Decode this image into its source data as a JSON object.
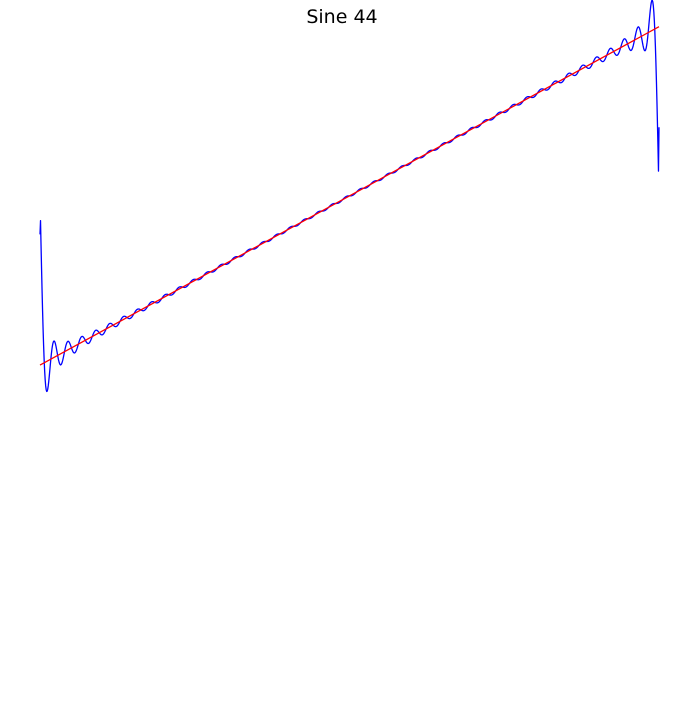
{
  "chart_data": {
    "type": "line",
    "title": "Sine 44",
    "xlabel": "",
    "ylabel": "",
    "axes_visible": false,
    "grid": false,
    "legend": "none",
    "xlim": [
      0,
      1
    ],
    "ylim": [
      -1,
      1
    ],
    "series": [
      {
        "color": "#0000ff",
        "style": "fourier-partial-sum",
        "harmonics": 44,
        "approximates": "sawtooth",
        "y_start": 0.36,
        "y_end": 0.68
      },
      {
        "color": "#ff0000",
        "style": "linear",
        "x": [
          0,
          1
        ],
        "y": [
          -0.03,
          0.98
        ]
      }
    ]
  }
}
